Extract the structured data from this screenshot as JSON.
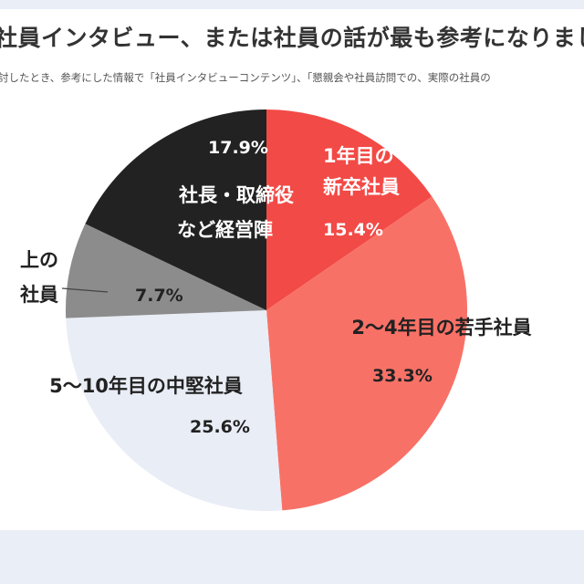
{
  "chart_data": {
    "type": "pie",
    "title": "社員インタビュー、または社員の話が最も参考になりまし",
    "subtitle": "討したとき、参考にした情報で「社員インタビューコンテンツ」、「懇親会や社員訪問での、実際の社員の",
    "start_angle": "top",
    "direction": "clockwise",
    "slices": [
      {
        "label_lines": [
          "1年目の",
          "新卒社員"
        ],
        "value": 15.4,
        "value_label": "15.4%",
        "color": "#f24a46",
        "text_color": "#ffffff"
      },
      {
        "label_lines": [
          "2〜4年目の若手社員"
        ],
        "value": 33.3,
        "value_label": "33.3%",
        "color": "#f87167",
        "text_color": "#222222"
      },
      {
        "label_lines": [
          "5〜10年目の中堅社員"
        ],
        "value": 25.6,
        "value_label": "25.6%",
        "color": "#e9edf6",
        "text_color": "#222222"
      },
      {
        "label_lines": [
          "上の",
          "社員"
        ],
        "value": 7.7,
        "value_label": "7.7%",
        "color": "#8c8c8c",
        "text_color": "#222222"
      },
      {
        "label_lines": [
          "社長・取締役",
          "など経営陣"
        ],
        "value": 17.9,
        "value_label": "17.9%",
        "color": "#222222",
        "text_color": "#ffffff"
      }
    ]
  }
}
